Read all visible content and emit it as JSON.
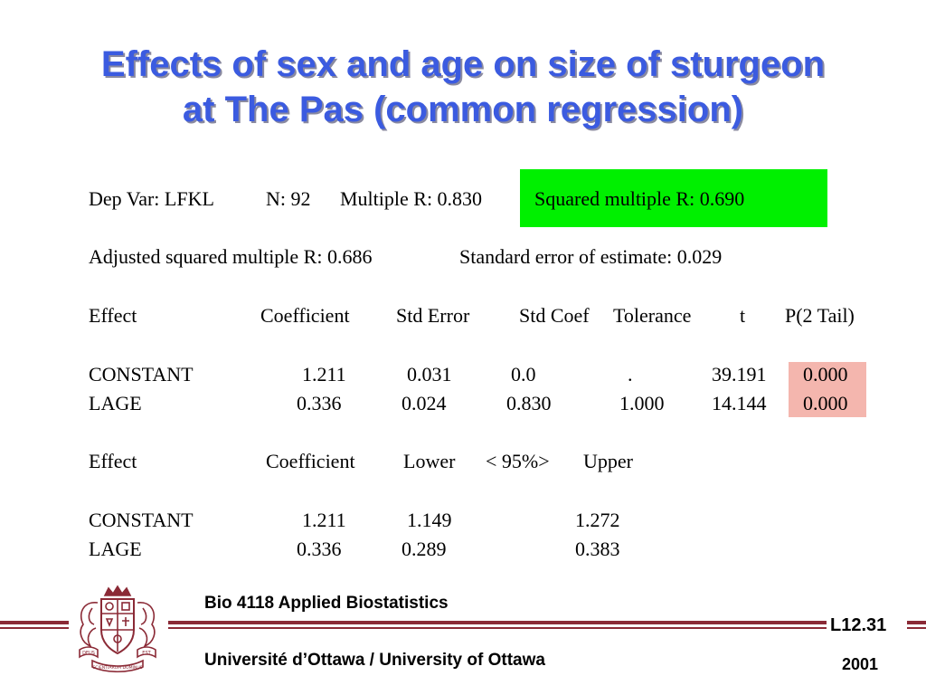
{
  "title": {
    "line1": "Effects of sex and age on size of sturgeon",
    "line2": "at The Pas (common regression)"
  },
  "stats": {
    "dep_var": "Dep Var: LFKL",
    "n": "N: 92",
    "multiple_r": "Multiple R: 0.830",
    "squared_multiple_r": "Squared multiple R: 0.690",
    "adjusted_r": "Adjusted squared multiple R: 0.686",
    "std_error_estimate": "Standard error of estimate: 0.029"
  },
  "coef_table": {
    "headers": [
      "Effect",
      "Coefficient",
      "Std Error",
      "Std Coef",
      "Tolerance",
      "t",
      "P(2 Tail)"
    ],
    "rows": [
      [
        "CONSTANT",
        "1.211",
        "0.031",
        "0.0",
        ".",
        "39.191",
        "0.000"
      ],
      [
        "LAGE",
        "0.336",
        "0.024",
        "0.830",
        "1.000",
        "14.144",
        "0.000"
      ]
    ]
  },
  "ci_table": {
    "headers": [
      "Effect",
      "Coefficient",
      "Lower",
      "< 95%>",
      "Upper"
    ],
    "rows": [
      [
        "CONSTANT",
        "1.211",
        "1.149",
        "1.272"
      ],
      [
        "LAGE",
        "0.336",
        "0.289",
        "0.383"
      ]
    ]
  },
  "footer": {
    "course": "Bio 4118 Applied Biostatistics",
    "university": "Université d’Ottawa / University of Ottawa",
    "slide_number": "L12.31",
    "year": "2001",
    "crest_text": [
      "DEUS",
      "EST",
      "SCIENTIARUM DOMINUS"
    ]
  },
  "colors": {
    "title": "#3B5BE0",
    "highlight_green": "#00F000",
    "highlight_pink": "#F4B6AE",
    "rule": "#8B2A36"
  }
}
